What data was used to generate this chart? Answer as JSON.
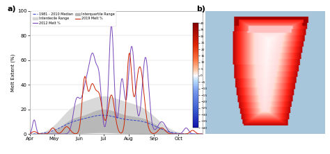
{
  "title_a": "a)",
  "title_b": "b)",
  "ylabel": "Melt Extent (%)",
  "ylim": [
    0,
    100
  ],
  "yticks": [
    0,
    20,
    40,
    60,
    80,
    100
  ],
  "xlabel_ticks": [
    "Apr",
    "May",
    "Jun",
    "Jul",
    "Aug",
    "Sep",
    "Oct"
  ],
  "colorbar_ticks": [
    40,
    35,
    30,
    25,
    20,
    15,
    10,
    5,
    0,
    -5,
    -10,
    -15,
    -20,
    -25,
    -30,
    -35,
    -40
  ],
  "background_color": "#ffffff",
  "plot_bg": "#ffffff",
  "ocean_color": "#a8c8dc",
  "median_color": "#3344cc",
  "line2012_color": "#7744bb",
  "line2019_color": "#cc2200",
  "interdecile_color": "#d5d5d5",
  "interquartile_color": "#b5b5b5"
}
